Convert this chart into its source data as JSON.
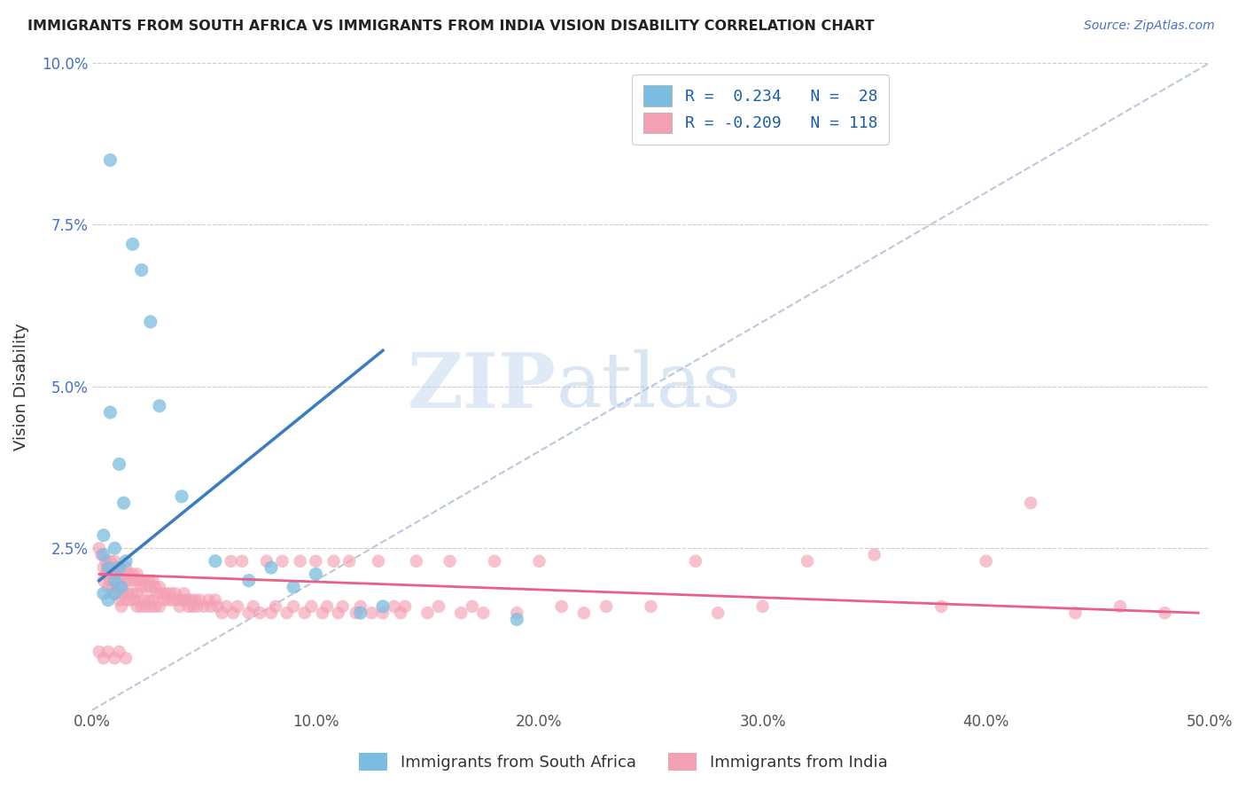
{
  "title": "IMMIGRANTS FROM SOUTH AFRICA VS IMMIGRANTS FROM INDIA VISION DISABILITY CORRELATION CHART",
  "source_text": "Source: ZipAtlas.com",
  "ylabel": "Vision Disability",
  "xlim": [
    0.0,
    0.5
  ],
  "ylim": [
    0.0,
    0.1
  ],
  "color_blue": "#7bbde0",
  "color_pink": "#f4a0b5",
  "line_blue": "#3a7cc1",
  "line_pink": "#e8608a",
  "line_dash_color": "#aabbd4",
  "watermark_zip": "ZIP",
  "watermark_atlas": "atlas",
  "blue_scatter": [
    [
      0.008,
      0.085
    ],
    [
      0.018,
      0.072
    ],
    [
      0.022,
      0.068
    ],
    [
      0.026,
      0.06
    ],
    [
      0.03,
      0.047
    ],
    [
      0.008,
      0.046
    ],
    [
      0.012,
      0.038
    ],
    [
      0.014,
      0.032
    ],
    [
      0.005,
      0.027
    ],
    [
      0.01,
      0.025
    ],
    [
      0.005,
      0.024
    ],
    [
      0.007,
      0.022
    ],
    [
      0.01,
      0.02
    ],
    [
      0.012,
      0.022
    ],
    [
      0.015,
      0.023
    ],
    [
      0.005,
      0.018
    ],
    [
      0.007,
      0.017
    ],
    [
      0.01,
      0.018
    ],
    [
      0.013,
      0.019
    ],
    [
      0.04,
      0.033
    ],
    [
      0.055,
      0.023
    ],
    [
      0.07,
      0.02
    ],
    [
      0.08,
      0.022
    ],
    [
      0.09,
      0.019
    ],
    [
      0.1,
      0.021
    ],
    [
      0.12,
      0.015
    ],
    [
      0.13,
      0.016
    ],
    [
      0.19,
      0.014
    ]
  ],
  "pink_scatter": [
    [
      0.003,
      0.025
    ],
    [
      0.004,
      0.024
    ],
    [
      0.005,
      0.022
    ],
    [
      0.005,
      0.02
    ],
    [
      0.006,
      0.023
    ],
    [
      0.006,
      0.021
    ],
    [
      0.007,
      0.022
    ],
    [
      0.007,
      0.019
    ],
    [
      0.008,
      0.023
    ],
    [
      0.008,
      0.02
    ],
    [
      0.009,
      0.022
    ],
    [
      0.009,
      0.019
    ],
    [
      0.01,
      0.023
    ],
    [
      0.01,
      0.021
    ],
    [
      0.01,
      0.018
    ],
    [
      0.011,
      0.022
    ],
    [
      0.011,
      0.019
    ],
    [
      0.012,
      0.022
    ],
    [
      0.012,
      0.02
    ],
    [
      0.012,
      0.017
    ],
    [
      0.013,
      0.021
    ],
    [
      0.013,
      0.019
    ],
    [
      0.013,
      0.016
    ],
    [
      0.014,
      0.021
    ],
    [
      0.014,
      0.018
    ],
    [
      0.015,
      0.022
    ],
    [
      0.015,
      0.02
    ],
    [
      0.015,
      0.017
    ],
    [
      0.016,
      0.021
    ],
    [
      0.016,
      0.018
    ],
    [
      0.017,
      0.02
    ],
    [
      0.017,
      0.017
    ],
    [
      0.018,
      0.021
    ],
    [
      0.018,
      0.018
    ],
    [
      0.019,
      0.02
    ],
    [
      0.019,
      0.017
    ],
    [
      0.02,
      0.021
    ],
    [
      0.02,
      0.018
    ],
    [
      0.02,
      0.016
    ],
    [
      0.021,
      0.02
    ],
    [
      0.022,
      0.019
    ],
    [
      0.022,
      0.016
    ],
    [
      0.023,
      0.02
    ],
    [
      0.023,
      0.017
    ],
    [
      0.024,
      0.019
    ],
    [
      0.024,
      0.016
    ],
    [
      0.025,
      0.02
    ],
    [
      0.025,
      0.017
    ],
    [
      0.026,
      0.019
    ],
    [
      0.026,
      0.016
    ],
    [
      0.027,
      0.02
    ],
    [
      0.027,
      0.017
    ],
    [
      0.028,
      0.019
    ],
    [
      0.028,
      0.016
    ],
    [
      0.029,
      0.018
    ],
    [
      0.03,
      0.019
    ],
    [
      0.03,
      0.016
    ],
    [
      0.031,
      0.018
    ],
    [
      0.032,
      0.017
    ],
    [
      0.033,
      0.018
    ],
    [
      0.034,
      0.017
    ],
    [
      0.035,
      0.018
    ],
    [
      0.036,
      0.017
    ],
    [
      0.037,
      0.018
    ],
    [
      0.038,
      0.017
    ],
    [
      0.039,
      0.016
    ],
    [
      0.04,
      0.017
    ],
    [
      0.041,
      0.018
    ],
    [
      0.042,
      0.017
    ],
    [
      0.043,
      0.016
    ],
    [
      0.044,
      0.017
    ],
    [
      0.045,
      0.016
    ],
    [
      0.046,
      0.017
    ],
    [
      0.047,
      0.016
    ],
    [
      0.048,
      0.017
    ],
    [
      0.05,
      0.016
    ],
    [
      0.052,
      0.017
    ],
    [
      0.053,
      0.016
    ],
    [
      0.055,
      0.017
    ],
    [
      0.056,
      0.016
    ],
    [
      0.058,
      0.015
    ],
    [
      0.06,
      0.016
    ],
    [
      0.062,
      0.023
    ],
    [
      0.063,
      0.015
    ],
    [
      0.065,
      0.016
    ],
    [
      0.067,
      0.023
    ],
    [
      0.07,
      0.015
    ],
    [
      0.072,
      0.016
    ],
    [
      0.075,
      0.015
    ],
    [
      0.078,
      0.023
    ],
    [
      0.08,
      0.015
    ],
    [
      0.082,
      0.016
    ],
    [
      0.085,
      0.023
    ],
    [
      0.087,
      0.015
    ],
    [
      0.09,
      0.016
    ],
    [
      0.093,
      0.023
    ],
    [
      0.095,
      0.015
    ],
    [
      0.098,
      0.016
    ],
    [
      0.1,
      0.023
    ],
    [
      0.103,
      0.015
    ],
    [
      0.105,
      0.016
    ],
    [
      0.108,
      0.023
    ],
    [
      0.11,
      0.015
    ],
    [
      0.112,
      0.016
    ],
    [
      0.115,
      0.023
    ],
    [
      0.118,
      0.015
    ],
    [
      0.12,
      0.016
    ],
    [
      0.125,
      0.015
    ],
    [
      0.128,
      0.023
    ],
    [
      0.13,
      0.015
    ],
    [
      0.135,
      0.016
    ],
    [
      0.138,
      0.015
    ],
    [
      0.14,
      0.016
    ],
    [
      0.145,
      0.023
    ],
    [
      0.15,
      0.015
    ],
    [
      0.155,
      0.016
    ],
    [
      0.16,
      0.023
    ],
    [
      0.165,
      0.015
    ],
    [
      0.17,
      0.016
    ],
    [
      0.175,
      0.015
    ],
    [
      0.18,
      0.023
    ],
    [
      0.19,
      0.015
    ],
    [
      0.2,
      0.023
    ],
    [
      0.21,
      0.016
    ],
    [
      0.22,
      0.015
    ],
    [
      0.23,
      0.016
    ],
    [
      0.003,
      0.009
    ],
    [
      0.005,
      0.008
    ],
    [
      0.007,
      0.009
    ],
    [
      0.01,
      0.008
    ],
    [
      0.012,
      0.009
    ],
    [
      0.015,
      0.008
    ],
    [
      0.25,
      0.016
    ],
    [
      0.27,
      0.023
    ],
    [
      0.28,
      0.015
    ],
    [
      0.3,
      0.016
    ],
    [
      0.32,
      0.023
    ],
    [
      0.35,
      0.024
    ],
    [
      0.38,
      0.016
    ],
    [
      0.4,
      0.023
    ],
    [
      0.42,
      0.032
    ],
    [
      0.44,
      0.015
    ],
    [
      0.46,
      0.016
    ],
    [
      0.48,
      0.015
    ]
  ],
  "blue_line_x": [
    0.003,
    0.13
  ],
  "blue_line_y_start": 0.02,
  "blue_line_slope": 0.28,
  "pink_line_x": [
    0.003,
    0.495
  ],
  "pink_line_y_start": 0.021,
  "pink_line_y_end": 0.015
}
